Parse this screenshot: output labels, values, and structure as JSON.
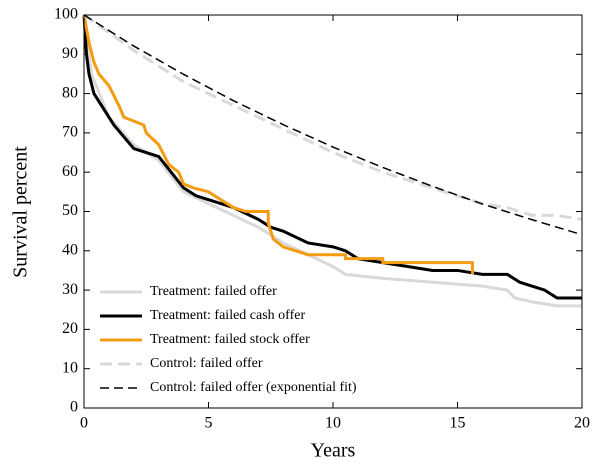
{
  "chart_data": {
    "type": "line",
    "xlabel": "Years",
    "ylabel": "Survival percent",
    "xlim": [
      0,
      20
    ],
    "ylim": [
      0,
      100
    ],
    "xticks": [
      0,
      5,
      10,
      15,
      20
    ],
    "yticks": [
      0,
      10,
      20,
      30,
      40,
      50,
      60,
      70,
      80,
      90,
      100
    ],
    "grid": false,
    "legend": "lower left",
    "series": [
      {
        "name": "Treatment: failed offer",
        "color": "#d9d9d9",
        "style": "solid",
        "x": [
          0,
          0.3,
          1,
          2,
          3,
          4,
          5,
          6,
          7,
          8,
          9,
          10,
          10.5,
          12,
          14,
          16,
          17,
          17.3,
          18,
          19,
          20
        ],
        "values": [
          100,
          85,
          74,
          67,
          63,
          55,
          52,
          49,
          46,
          42,
          39,
          36,
          34,
          33,
          32,
          31,
          30,
          28,
          27,
          26,
          26
        ]
      },
      {
        "name": "Treatment: failed cash offer",
        "color": "#000000",
        "style": "solid",
        "x": [
          0,
          0.1,
          0.2,
          0.4,
          0.8,
          1.2,
          1.6,
          2,
          2.5,
          3,
          3.5,
          4,
          4.5,
          5,
          6,
          7,
          7.5,
          8,
          9,
          10,
          10.5,
          11,
          12,
          13,
          14,
          15,
          16,
          17,
          17.5,
          18,
          18.5,
          19,
          20
        ],
        "values": [
          100,
          90,
          85,
          80,
          76,
          72,
          69,
          66,
          65,
          64,
          60,
          56,
          54,
          53,
          51,
          48,
          46,
          45,
          42,
          41,
          40,
          38,
          37,
          36,
          35,
          35,
          34,
          34,
          32,
          31,
          30,
          28,
          28
        ]
      },
      {
        "name": "Treatment: failed stock offer",
        "color": "#f39c12",
        "style": "solid",
        "x": [
          0,
          0.2,
          0.4,
          0.6,
          1,
          1.4,
          1.6,
          2,
          2.4,
          2.5,
          3,
          3.4,
          3.8,
          4,
          4.4,
          5,
          5.5,
          6,
          6.5,
          7.4,
          7.4,
          7.6,
          8,
          8.5,
          9,
          10.5,
          10.5,
          12,
          12,
          15.6,
          15.6
        ],
        "values": [
          100,
          93,
          88,
          85,
          82,
          77,
          74,
          73,
          72,
          70,
          67,
          62,
          60,
          57,
          56,
          55,
          53,
          51,
          50,
          50,
          47,
          43,
          41,
          40,
          39,
          39,
          38,
          38,
          37,
          37,
          34
        ]
      },
      {
        "name": "Control: failed offer",
        "color": "#d9d9d9",
        "style": "dashed",
        "x": [
          0,
          2,
          4,
          6,
          8,
          10,
          12,
          14,
          16,
          17,
          17.5,
          18,
          19,
          20
        ],
        "values": [
          100,
          91,
          83,
          77,
          71,
          65,
          60,
          56,
          52,
          51,
          50,
          49,
          49,
          48
        ]
      },
      {
        "name": "Control: failed offer (exponential fit)",
        "color": "#000000",
        "style": "dashed",
        "x": [
          0,
          2,
          4,
          6,
          8,
          10,
          12,
          14,
          16,
          18,
          20
        ],
        "values": [
          100,
          92.1,
          84.9,
          78.2,
          72.1,
          66.4,
          61.2,
          56.4,
          51.9,
          47.9,
          44.1
        ]
      }
    ]
  }
}
